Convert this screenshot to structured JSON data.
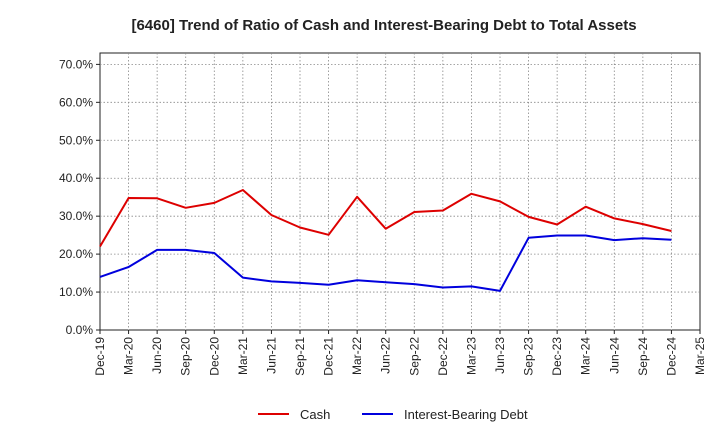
{
  "chart_data": {
    "type": "line",
    "title": "[6460]  Trend of Ratio of Cash and Interest-Bearing Debt to Total Assets",
    "xlabel": "",
    "ylabel": "",
    "ylim": [
      0,
      73
    ],
    "y_ticks": [
      "0.0%",
      "10.0%",
      "20.0%",
      "30.0%",
      "40.0%",
      "50.0%",
      "60.0%",
      "70.0%"
    ],
    "y_tick_values": [
      0,
      10,
      20,
      30,
      40,
      50,
      60,
      70
    ],
    "x_tick_labels": [
      "Dec-19",
      "Mar-20",
      "Jun-20",
      "Sep-20",
      "Dec-20",
      "Mar-21",
      "Jun-21",
      "Sep-21",
      "Dec-21",
      "Mar-22",
      "Jun-22",
      "Sep-22",
      "Dec-22",
      "Mar-23",
      "Jun-23",
      "Sep-23",
      "Dec-23",
      "Mar-24",
      "Jun-24",
      "Sep-24",
      "Dec-24",
      "Mar-25"
    ],
    "x": [
      "Dec-19",
      "Mar-20",
      "Jun-20",
      "Sep-20",
      "Dec-20",
      "Mar-21",
      "Jun-21",
      "Sep-21",
      "Dec-21",
      "Mar-22",
      "Jun-22",
      "Sep-22",
      "Dec-22",
      "Mar-23",
      "Jun-23",
      "Sep-23",
      "Dec-23",
      "Mar-24",
      "Jun-24",
      "Sep-24",
      "Dec-24"
    ],
    "grid": true,
    "legend_position": "bottom",
    "series": [
      {
        "name": "Cash",
        "color": "#dd0000",
        "values": [
          22.0,
          34.8,
          34.7,
          32.2,
          33.5,
          36.9,
          30.3,
          27.0,
          25.1,
          35.1,
          26.7,
          31.1,
          31.5,
          35.9,
          33.9,
          29.8,
          27.8,
          32.5,
          29.4,
          27.9,
          26.1
        ]
      },
      {
        "name": "Interest-Bearing Debt",
        "color": "#0000dd",
        "values": [
          14.0,
          16.6,
          21.1,
          21.1,
          20.3,
          13.8,
          12.8,
          12.4,
          11.9,
          13.1,
          12.6,
          12.1,
          11.2,
          11.5,
          10.3,
          24.3,
          24.9,
          24.9,
          23.7,
          24.2,
          23.8
        ]
      }
    ]
  }
}
